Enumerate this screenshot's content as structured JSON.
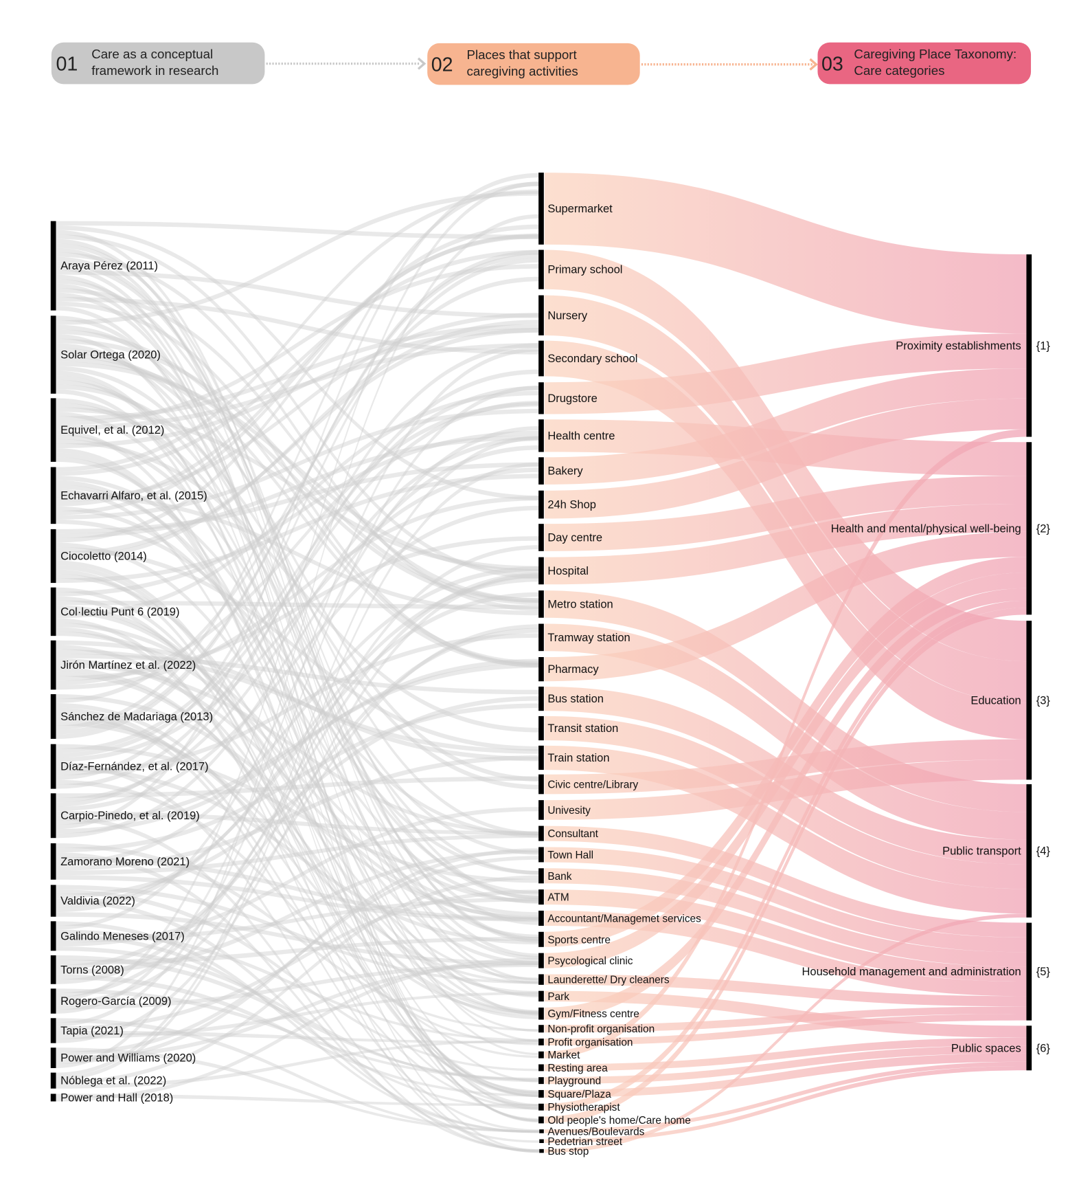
{
  "header": {
    "steps": [
      {
        "num": "01",
        "line1": "Care as a conceptual",
        "line2": "framework in research",
        "color": "#c8c8c8"
      },
      {
        "num": "02",
        "line1": "Places that support",
        "line2": "caregiving activities",
        "color": "#f7b490"
      },
      {
        "num": "03",
        "line1": "Caregiving Place Taxonomy:",
        "line2": "Care categories",
        "color": "#e96682"
      }
    ]
  },
  "sources": [
    "Araya Pérez (2011)",
    "Solar Ortega (2020)",
    "Equivel, et al. (2012)",
    "Echavarri Alfaro, et al. (2015)",
    "Ciocoletto (2014)",
    "Col·lectiu Punt 6 (2019)",
    "Jirón Martínez et al. (2022)",
    "Sánchez de Madariaga (2013)",
    "Díaz-Fernández, et al. (2017)",
    "Carpio-Pinedo, et al. (2019)",
    "Zamorano Moreno (2021)",
    "Valdivia (2022)",
    "Galindo Meneses (2017)",
    "Torns (2008)",
    "Rogero-García (2009)",
    "Tapia (2021)",
    "Power and Williams (2020)",
    "Nóblega et al. (2022)",
    "Power and Hall (2018)"
  ],
  "places": [
    {
      "name": "Supermarket",
      "category": 1
    },
    {
      "name": "Primary school",
      "category": 3
    },
    {
      "name": "Nursery",
      "category": 3
    },
    {
      "name": "Secondary school",
      "category": 3
    },
    {
      "name": "Drugstore",
      "category": 1
    },
    {
      "name": "Health centre",
      "category": 2
    },
    {
      "name": "Bakery",
      "category": 1
    },
    {
      "name": "24h Shop",
      "category": 1
    },
    {
      "name": "Day centre",
      "category": 2
    },
    {
      "name": "Hospital",
      "category": 2
    },
    {
      "name": "Metro station",
      "category": 4
    },
    {
      "name": "Tramway station",
      "category": 4
    },
    {
      "name": "Pharmacy",
      "category": 2
    },
    {
      "name": "Bus station",
      "category": 4
    },
    {
      "name": "Transit station",
      "category": 4
    },
    {
      "name": "Train station",
      "category": 4
    },
    {
      "name": "Civic centre/Library",
      "category": 3
    },
    {
      "name": "Univesity",
      "category": 3
    },
    {
      "name": "Consultant",
      "category": 5
    },
    {
      "name": "Town Hall",
      "category": 5
    },
    {
      "name": "Bank",
      "category": 5
    },
    {
      "name": "ATM",
      "category": 5
    },
    {
      "name": "Accountant/Managemet services",
      "category": 5
    },
    {
      "name": "Sports centre",
      "category": 2
    },
    {
      "name": "Psycological clinic",
      "category": 2
    },
    {
      "name": "Launderette/ Dry cleaners",
      "category": 5
    },
    {
      "name": "Park",
      "category": 6
    },
    {
      "name": "Gym/Fitness centre",
      "category": 2
    },
    {
      "name": "Non-profit organisation",
      "category": 5
    },
    {
      "name": "Profit organisation",
      "category": 5
    },
    {
      "name": "Market",
      "category": 1
    },
    {
      "name": "Resting area",
      "category": 6
    },
    {
      "name": "Playground",
      "category": 6
    },
    {
      "name": "Square/Plaza",
      "category": 6
    },
    {
      "name": "Physiotherapist",
      "category": 2
    },
    {
      "name": "Old people's home/Care home",
      "category": 2
    },
    {
      "name": "Avenues/Boulevards",
      "category": 6
    },
    {
      "name": "Pedetrian street",
      "category": 6
    },
    {
      "name": "Bus stop",
      "category": 4
    }
  ],
  "categories": [
    {
      "id": 1,
      "name": "Proximity establishments",
      "tag": "{1}"
    },
    {
      "id": 2,
      "name": "Health and mental/physical well-being",
      "tag": "{2}"
    },
    {
      "id": 3,
      "name": "Education",
      "tag": "{3}"
    },
    {
      "id": 4,
      "name": "Public transport",
      "tag": "{4}"
    },
    {
      "id": 5,
      "name": "Household management and administration",
      "tag": "{5}"
    },
    {
      "id": 6,
      "name": "Public spaces",
      "tag": "{6}"
    }
  ],
  "colors": {
    "source_link": "#cfcfcf",
    "place_link_start": "#fbd3bd",
    "place_link_end": "#f0a0b2",
    "node": "#000000"
  }
}
